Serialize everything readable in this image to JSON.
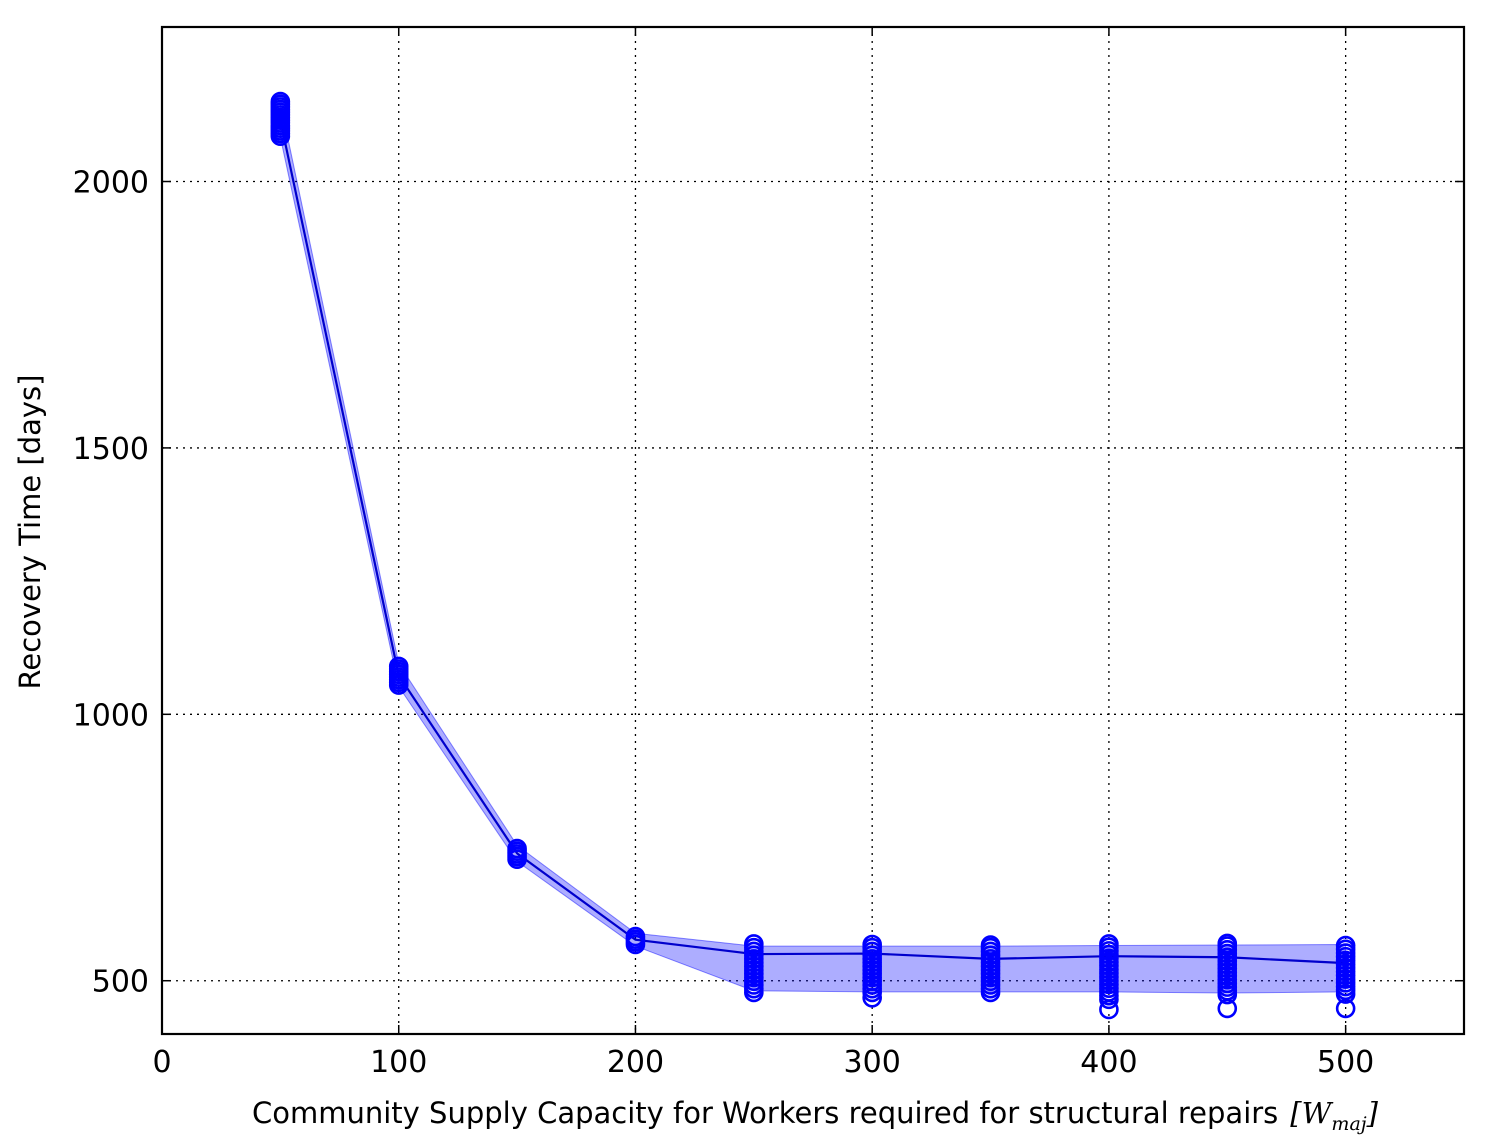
{
  "chart_data": {
    "type": "line",
    "xlabel": "Community Supply Capacity for Workers required for structural repairs",
    "xlabel_unit": "[W",
    "xlabel_unit_sub": "maj",
    "xlabel_unit_close": "]",
    "ylabel": "Recovery Time [days]",
    "xlim": [
      0,
      550
    ],
    "ylim": [
      400,
      2290
    ],
    "xticks": [
      0,
      100,
      200,
      300,
      400,
      500
    ],
    "yticks": [
      500,
      1000,
      1500,
      2000
    ],
    "grid": true,
    "colors": {
      "line": "#0000cc",
      "marker": "#0000ff",
      "band": "#0000ff"
    },
    "x": [
      50,
      100,
      150,
      200,
      250,
      300,
      350,
      400,
      450,
      500
    ],
    "series": [
      {
        "mean": [
          2115,
          1073,
          739,
          577,
          550,
          551,
          541,
          546,
          544,
          533
        ],
        "band_low": [
          2083,
          1052,
          724,
          565,
          481,
          479,
          479,
          479,
          477,
          479
        ],
        "band_high": [
          2148,
          1095,
          754,
          589,
          565,
          565,
          565,
          566,
          567,
          568
        ],
        "samples": [
          [
            2085,
            2090,
            2095,
            2100,
            2105,
            2110,
            2115,
            2120,
            2125,
            2130,
            2135,
            2140,
            2145,
            2150
          ],
          [
            1055,
            1060,
            1065,
            1070,
            1075,
            1080,
            1085,
            1090
          ],
          [
            728,
            733,
            738,
            743,
            748
          ],
          [
            568,
            573,
            578,
            583
          ],
          [
            478,
            485,
            492,
            499,
            506,
            513,
            520,
            527,
            534,
            541,
            548,
            555,
            562,
            569
          ],
          [
            468,
            478,
            485,
            492,
            499,
            506,
            513,
            520,
            527,
            534,
            541,
            548,
            555,
            562,
            568
          ],
          [
            478,
            485,
            492,
            499,
            506,
            513,
            520,
            527,
            534,
            541,
            548,
            555,
            562,
            567
          ],
          [
            446,
            465,
            472,
            479,
            486,
            493,
            500,
            507,
            514,
            521,
            528,
            535,
            542,
            549,
            556,
            563,
            569
          ],
          [
            448,
            474,
            481,
            488,
            495,
            502,
            509,
            516,
            523,
            530,
            537,
            544,
            551,
            558,
            565,
            570
          ],
          [
            448,
            475,
            482,
            489,
            496,
            503,
            510,
            517,
            524,
            531,
            538,
            545,
            552,
            559,
            566
          ]
        ]
      }
    ]
  }
}
